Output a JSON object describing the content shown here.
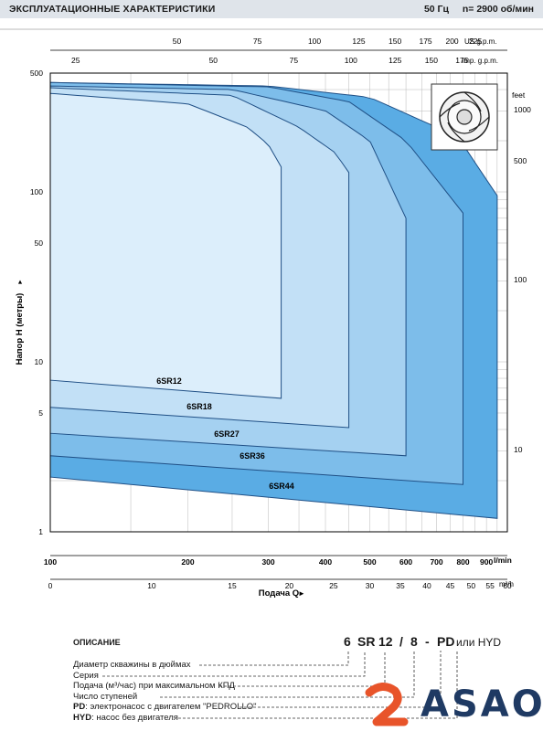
{
  "header": {
    "title": "ЭКСПЛУАТАЦИОННЫЕ ХАРАКТЕРИСТИКИ",
    "frequency": "50 Гц",
    "speed": "n= 2900 об/мин"
  },
  "chart_data": {
    "type": "area",
    "x_scale": "log",
    "y_scale": "log",
    "xlim": [
      100,
      1000
    ],
    "ylim": [
      1,
      500
    ],
    "x_unit": "l/min",
    "xlabel": "Подача Q",
    "ylabel": "Напор H  (метры)",
    "grid": true,
    "x_ticks_lmin": [
      100,
      200,
      300,
      400,
      500,
      600,
      700,
      800,
      900
    ],
    "x_ticks_lmin_labels": [
      "100",
      "200",
      "300",
      "400",
      "500",
      "600",
      "700",
      "800",
      "900",
      "l/min"
    ],
    "x_ticks_m3h": [
      0,
      10,
      15,
      20,
      25,
      30,
      35,
      40,
      45,
      50,
      55,
      60
    ],
    "x_ticks_m3h_labels": [
      "0",
      "10",
      "15",
      "20",
      "25",
      "30",
      "35",
      "40",
      "45",
      "50",
      "55",
      "60",
      "m³/h"
    ],
    "top_axis_us": {
      "label": "US g.p.m.",
      "ticks": [
        50,
        75,
        100,
        125,
        150,
        175,
        200,
        225
      ]
    },
    "top_axis_imp": {
      "label": "Imp. g.p.m.",
      "ticks": [
        25,
        50,
        75,
        100,
        125,
        150,
        175
      ]
    },
    "y_ticks": [
      1,
      5,
      10,
      50,
      100,
      500
    ],
    "y_ticks_labels": [
      "1",
      "5",
      "10",
      "50",
      "100",
      "500"
    ],
    "right_axis_feet": {
      "label": "feet",
      "ticks": [
        10,
        100,
        500,
        1000
      ]
    },
    "colors": [
      "#5aace4",
      "#7dbdea",
      "#a5d1f1",
      "#c2e0f6",
      "#dceefb"
    ],
    "series": [
      {
        "name": "6SR44",
        "x_max": 950,
        "top": [
          [
            100,
            440
          ],
          [
            300,
            420
          ],
          [
            500,
            360
          ],
          [
            700,
            240
          ],
          [
            800,
            190
          ],
          [
            950,
            95
          ]
        ],
        "bottom": [
          [
            100,
            2.1
          ],
          [
            950,
            1.2
          ]
        ]
      },
      {
        "name": "6SR36",
        "x_max": 800,
        "top": [
          [
            100,
            440
          ],
          [
            300,
            415
          ],
          [
            450,
            340
          ],
          [
            600,
            200
          ],
          [
            800,
            75
          ]
        ],
        "bottom": [
          [
            100,
            2.8
          ],
          [
            800,
            1.9
          ]
        ]
      },
      {
        "name": "6SR27",
        "x_max": 600,
        "top": [
          [
            100,
            420
          ],
          [
            250,
            400
          ],
          [
            400,
            300
          ],
          [
            500,
            200
          ],
          [
            600,
            70
          ]
        ],
        "bottom": [
          [
            100,
            3.8
          ],
          [
            600,
            2.8
          ]
        ]
      },
      {
        "name": "6SR18",
        "x_max": 450,
        "top": [
          [
            100,
            410
          ],
          [
            250,
            370
          ],
          [
            350,
            240
          ],
          [
            420,
            170
          ],
          [
            450,
            130
          ]
        ],
        "bottom": [
          [
            100,
            5.4
          ],
          [
            450,
            4.1
          ]
        ]
      },
      {
        "name": "6SR12",
        "x_max": 320,
        "top": [
          [
            100,
            380
          ],
          [
            200,
            330
          ],
          [
            270,
            240
          ],
          [
            300,
            190
          ],
          [
            320,
            140
          ]
        ],
        "bottom": [
          [
            100,
            7.8
          ],
          [
            320,
            6.1
          ]
        ]
      }
    ]
  },
  "pump_icon": "impeller-icon",
  "description": {
    "title": "ОПИСАНИЕ",
    "code_parts": [
      "6",
      "SR",
      "12",
      "/",
      "8",
      "-",
      "PD"
    ],
    "code_suffix": "или HYD",
    "lines": [
      {
        "bold": "",
        "text": "Диаметр скважины в дюймах"
      },
      {
        "bold": "",
        "text": "Серия"
      },
      {
        "bold": "",
        "text": "Подача (м³/час) при максимальном КПД"
      },
      {
        "bold": "",
        "text": "Число ступеней"
      },
      {
        "bold": "PD",
        "text": ": электронасос с двигателем \"PEDROLLO\""
      },
      {
        "bold": "HYD",
        "text": ": насос без двигателя"
      }
    ]
  },
  "logo": {
    "text": "ASAO",
    "primary": "#1f3a63",
    "accent": "#e8542a"
  }
}
